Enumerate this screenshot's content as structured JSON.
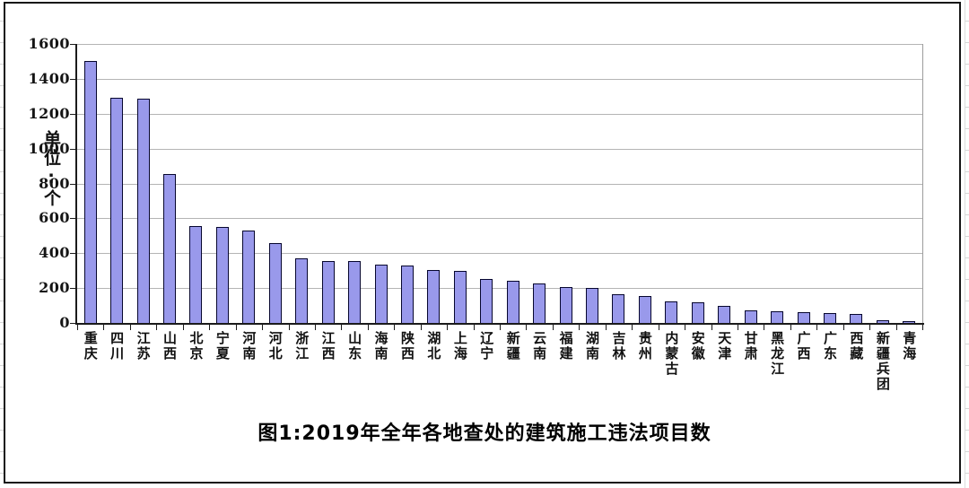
{
  "window": {
    "background": "#ffffff",
    "frame_border_color": "#161616"
  },
  "chart_data": {
    "type": "bar",
    "title": "图1:2019年全年各地查处的建筑施工违法项目数",
    "xlabel": "",
    "ylabel": "单位:个",
    "ylim": [
      0,
      1600
    ],
    "yticks": [
      0,
      200,
      400,
      600,
      800,
      1000,
      1200,
      1400,
      1600
    ],
    "grid": true,
    "legend": false,
    "plot_background": "#ffffff",
    "gridline_color": "#b4b4b4",
    "bar_fill": "#9999eb",
    "bar_border": "#06062e",
    "categories": [
      "重庆",
      "四川",
      "江苏",
      "山西",
      "北京",
      "宁夏",
      "河南",
      "河北",
      "浙江",
      "江西",
      "山东",
      "海南",
      "陕西",
      "湖北",
      "上海",
      "辽宁",
      "新疆",
      "云南",
      "福建",
      "湖南",
      "吉林",
      "贵州",
      "内蒙古",
      "安徽",
      "天津",
      "甘肃",
      "黑龙江",
      "广西",
      "广东",
      "西藏",
      "新疆兵团",
      "青海"
    ],
    "values": [
      1500,
      1290,
      1285,
      855,
      555,
      550,
      530,
      460,
      370,
      355,
      355,
      335,
      330,
      305,
      300,
      250,
      240,
      225,
      205,
      200,
      165,
      155,
      125,
      120,
      100,
      70,
      65,
      60,
      55,
      50,
      15,
      10
    ]
  }
}
